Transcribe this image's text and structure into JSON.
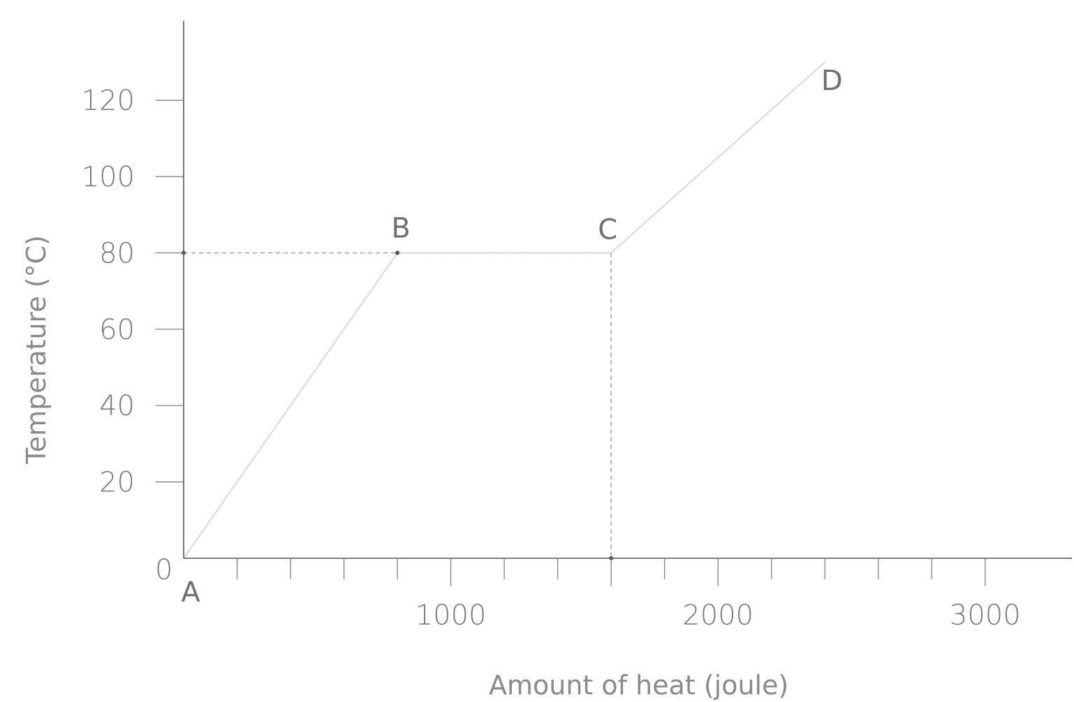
{
  "chart_data": {
    "type": "line",
    "title": "",
    "xlabel": "Amount of heat (joule)",
    "ylabel": "Temperature (°C)",
    "xlim": [
      0,
      3000
    ],
    "ylim": [
      0,
      140
    ],
    "x_ticks": [
      1000,
      2000,
      3000
    ],
    "y_ticks": [
      20,
      40,
      60,
      80,
      100,
      120
    ],
    "origin_label": "0",
    "grid": false,
    "series": [
      {
        "values": [
          {
            "x": 0,
            "y": 0,
            "label": "A"
          },
          {
            "x": 800,
            "y": 80,
            "label": "B"
          },
          {
            "x": 1600,
            "y": 80,
            "label": "C"
          },
          {
            "x": 2400,
            "y": 130,
            "label": "D"
          }
        ]
      }
    ],
    "guides": [
      {
        "from": {
          "x": 0,
          "y": 80
        },
        "to": {
          "x": 1600,
          "y": 80
        }
      },
      {
        "from": {
          "x": 1600,
          "y": 80
        },
        "to": {
          "x": 1600,
          "y": 0
        }
      }
    ],
    "colors": {
      "axis": "#555555",
      "line": "#d8d8d8",
      "text": "#7a7a7a"
    }
  }
}
